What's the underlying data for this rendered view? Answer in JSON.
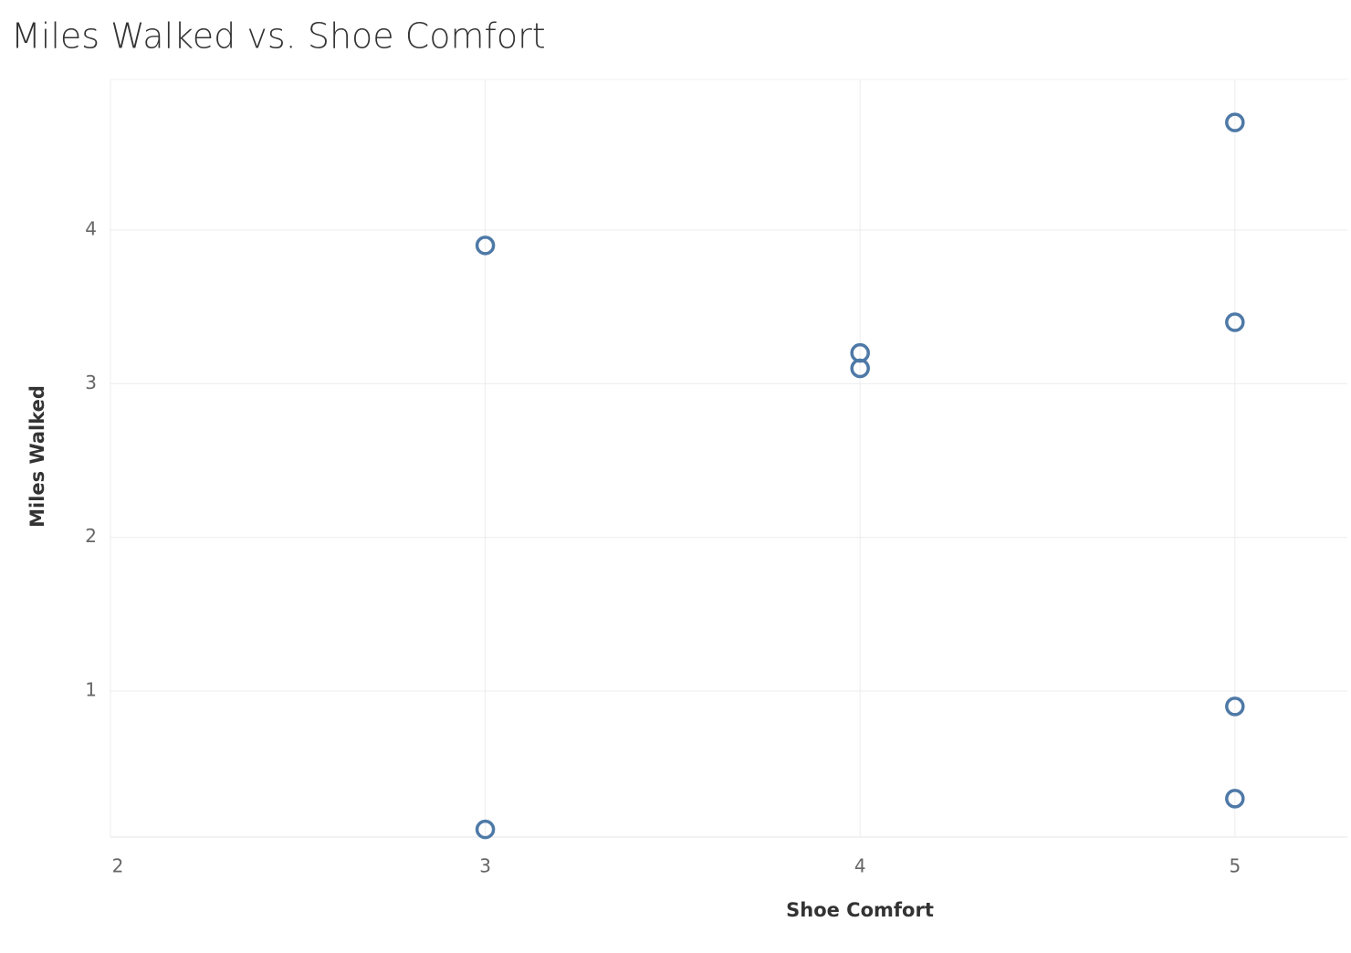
{
  "chart_data": {
    "type": "scatter",
    "title": "Miles Walked vs. Shoe Comfort",
    "x_label": "Shoe Comfort",
    "y_label": "Miles Walked",
    "x": [
      3,
      3,
      4,
      4,
      5,
      5,
      5,
      5
    ],
    "values": [
      3.9,
      0.1,
      3.2,
      3.1,
      4.7,
      3.4,
      0.9,
      0.3
    ],
    "color": "#4e79a7",
    "xlim": [
      2,
      5.3
    ],
    "xticks": [
      2,
      3,
      4,
      5
    ],
    "ylim": [
      0.05,
      4.98
    ],
    "yticks": [
      1,
      2,
      3,
      4
    ],
    "grid": true
  }
}
